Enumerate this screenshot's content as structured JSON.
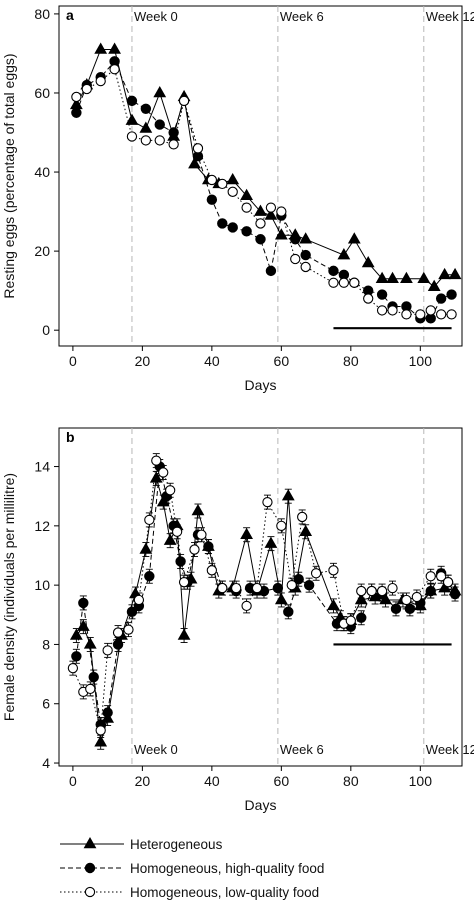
{
  "chart_data": [
    {
      "panel": "a",
      "type": "line",
      "ylabel": "Resting eggs (percentage of total eggs)",
      "xlabel": "Days",
      "xlim": [
        -4,
        112
      ],
      "ylim": [
        -4,
        82
      ],
      "xticks": [
        0,
        20,
        40,
        60,
        80,
        100
      ],
      "yticks": [
        0,
        20,
        40,
        60,
        80
      ],
      "week_markers": [
        {
          "label": "Week 0",
          "day": 17
        },
        {
          "label": "Week 6",
          "day": 59
        },
        {
          "label": "Week 12",
          "day": 101
        }
      ],
      "period_bar": {
        "from": 75,
        "to": 109,
        "y": 0.5
      },
      "series": [
        {
          "name": "Heterogeneous",
          "marker": "triangle",
          "line": "solid",
          "x": [
            1,
            4,
            8,
            12,
            17,
            21,
            25,
            29,
            32,
            35,
            39,
            42,
            46,
            50,
            54,
            57,
            60,
            64,
            67,
            78,
            81,
            85,
            89,
            92,
            96,
            101,
            104,
            107,
            110
          ],
          "y": [
            57,
            62,
            71,
            71,
            53,
            51,
            60,
            49,
            59,
            42,
            38,
            37,
            38,
            34,
            30,
            29,
            24,
            24,
            23,
            19,
            23,
            17,
            13,
            13,
            13,
            13,
            11,
            14,
            14
          ]
        },
        {
          "name": "Homogeneous, high-quality food",
          "marker": "filled-circle",
          "line": "dashed",
          "x": [
            1,
            4,
            8,
            12,
            17,
            21,
            25,
            29,
            32,
            36,
            40,
            43,
            46,
            50,
            54,
            57,
            60,
            64,
            67,
            75,
            78,
            81,
            85,
            89,
            92,
            96,
            100,
            103,
            106,
            109
          ],
          "y": [
            55,
            62,
            64,
            68,
            58,
            56,
            52,
            50,
            58,
            44,
            33,
            27,
            26,
            25,
            23,
            15,
            29,
            23,
            19,
            15,
            14,
            12,
            10,
            9,
            6,
            6,
            3,
            3,
            8,
            9
          ]
        },
        {
          "name": "Homogeneous, low-quality food",
          "marker": "open-circle",
          "line": "dotted",
          "x": [
            1,
            4,
            8,
            12,
            17,
            21,
            25,
            29,
            32,
            36,
            40,
            43,
            46,
            50,
            54,
            57,
            60,
            64,
            67,
            75,
            78,
            81,
            85,
            89,
            92,
            96,
            100,
            103,
            106,
            109
          ],
          "y": [
            59,
            61,
            63,
            66,
            49,
            48,
            48,
            47,
            58,
            46,
            38,
            37,
            35,
            31,
            27,
            31,
            30,
            18,
            16,
            12,
            12,
            12,
            8,
            5,
            5,
            4,
            4,
            5,
            4,
            4
          ]
        }
      ]
    },
    {
      "panel": "b",
      "type": "line",
      "ylabel": "Female density (individuals per millilitre)",
      "xlabel": "Days",
      "xlim": [
        -4,
        112
      ],
      "ylim": [
        3.9,
        15.3
      ],
      "xticks": [
        0,
        20,
        40,
        60,
        80,
        100
      ],
      "yticks": [
        4,
        6,
        8,
        10,
        12,
        14
      ],
      "week_markers": [
        {
          "label": "Week 0",
          "day": 17
        },
        {
          "label": "Week 6",
          "day": 59
        },
        {
          "label": "Week 12",
          "day": 101
        }
      ],
      "period_bar": {
        "from": 75,
        "to": 109,
        "y": 8.0
      },
      "series": [
        {
          "name": "Heterogeneous",
          "marker": "triangle",
          "line": "solid",
          "x": [
            1,
            3,
            5,
            8,
            10,
            14,
            18,
            21,
            24,
            26,
            28,
            30,
            32,
            34,
            36,
            39,
            42,
            46,
            50,
            53,
            57,
            60,
            62,
            64,
            67,
            75,
            77,
            80,
            83,
            87,
            90,
            95,
            100,
            103,
            107,
            110
          ],
          "y": [
            8.3,
            8.6,
            8.0,
            4.7,
            5.5,
            8.3,
            9.7,
            11.2,
            13.6,
            12.8,
            11.5,
            12.0,
            8.3,
            10.2,
            12.5,
            11.3,
            9.8,
            9.9,
            11.7,
            9.8,
            11.4,
            9.5,
            13.0,
            9.9,
            11.8,
            9.3,
            8.9,
            8.8,
            9.5,
            9.6,
            9.5,
            9.5,
            9.3,
            9.8,
            9.9,
            9.8
          ]
        },
        {
          "name": "Homogeneous, high-quality food",
          "marker": "filled-circle",
          "line": "dashed",
          "x": [
            1,
            3,
            6,
            8,
            10,
            13,
            17,
            19,
            22,
            25,
            27,
            29,
            31,
            33,
            36,
            39,
            43,
            47,
            51,
            55,
            59,
            62,
            65,
            68,
            76,
            78,
            80,
            83,
            86,
            89,
            93,
            97,
            100,
            103,
            106,
            108,
            110
          ],
          "y": [
            7.6,
            9.4,
            6.9,
            5.3,
            5.7,
            8.0,
            9.1,
            9.3,
            10.3,
            14.0,
            13.0,
            12.0,
            10.8,
            10.1,
            11.7,
            11.3,
            9.9,
            9.8,
            9.9,
            9.8,
            9.9,
            9.1,
            10.2,
            10.0,
            8.7,
            8.7,
            8.6,
            8.9,
            9.8,
            9.7,
            9.2,
            9.2,
            9.4,
            9.8,
            10.4,
            10.1,
            9.7
          ]
        },
        {
          "name": "Homogeneous, low-quality food",
          "marker": "open-circle",
          "line": "dotted",
          "x": [
            0,
            3,
            5,
            8,
            10,
            13,
            16,
            19,
            22,
            24,
            26,
            28,
            30,
            32,
            35,
            37,
            40,
            43,
            47,
            50,
            53,
            56,
            60,
            63,
            66,
            70,
            75,
            78,
            80,
            83,
            86,
            89,
            92,
            96,
            99,
            103,
            106,
            108
          ],
          "y": [
            7.2,
            6.4,
            6.5,
            5.1,
            7.8,
            8.4,
            8.5,
            9.5,
            12.2,
            14.2,
            13.8,
            13.2,
            11.8,
            10.1,
            11.2,
            11.7,
            10.5,
            9.9,
            9.9,
            9.3,
            9.9,
            12.8,
            12.0,
            10.0,
            12.3,
            10.4,
            10.5,
            8.7,
            8.8,
            9.8,
            9.8,
            9.8,
            9.9,
            9.5,
            9.6,
            10.3,
            10.3,
            10.1
          ]
        }
      ]
    }
  ],
  "legend": {
    "items": [
      {
        "label": "Heterogeneous",
        "marker": "triangle",
        "line": "solid"
      },
      {
        "label": "Homogeneous, high-quality food",
        "marker": "filled-circle",
        "line": "dashed"
      },
      {
        "label": "Homogeneous, low-quality food",
        "marker": "open-circle",
        "line": "dotted"
      }
    ]
  },
  "colors": {
    "ink": "#000000",
    "week_line": "#b8b8b8"
  }
}
